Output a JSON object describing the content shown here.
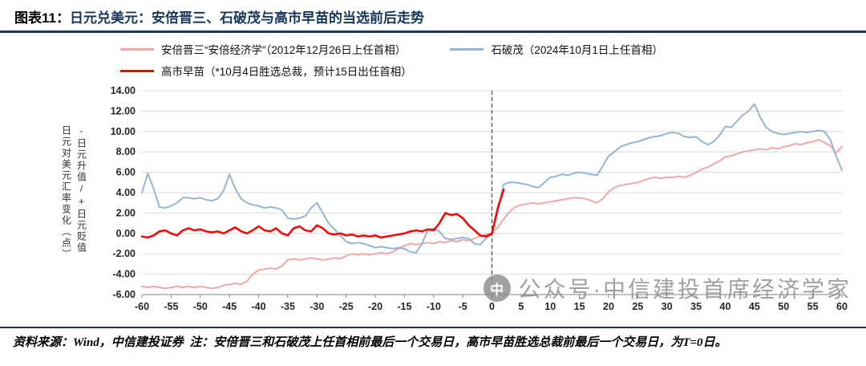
{
  "header": {
    "prefix": "图表11：",
    "title": "日元兑美元：安倍晋三、石破茂与高市早苗的当选前后走势"
  },
  "legend": [
    {
      "label": "安倍晋三“安倍经济学”（2012年12月26日上任首相）",
      "color": "#F3A6A6"
    },
    {
      "label": "石破茂（2024年10月1日上任首相）",
      "color": "#95B5D5"
    },
    {
      "label": "高市早苗（*10月4日胜选总裁，预计15日出任首相）",
      "color": "#FF0000"
    }
  ],
  "y_axis": {
    "line1": "日元对美元汇率变化（点）",
    "line2": "-日元升值/+日元贬值"
  },
  "watermark": {
    "logo_glyph": "中",
    "text": "公众号·中信建投首席经济学家"
  },
  "footer": {
    "text": "资料来源：Wind，中信建投证券  注：安倍晋三和石破茂上任首相前最后一个交易日，高市早苗胜选总裁前最后一个交易日，为T=0日。"
  },
  "chart_data": {
    "type": "line",
    "x_range": [
      -60,
      60
    ],
    "y_range": [
      -6,
      14
    ],
    "x_tick_step": 5,
    "y_tick_step": 2,
    "grid": "horizontal",
    "legend_position": "top",
    "vline_x": 0,
    "colors": {
      "gridline": "#D9D9D9",
      "axis": "#808080",
      "vline": "#17375D",
      "tick_text": "#262626"
    },
    "series": [
      {
        "name": "安倍晋三",
        "color": "#F3A6A6",
        "width": 2,
        "points": [
          [
            -60,
            -5.2
          ],
          [
            -59,
            -5.3
          ],
          [
            -58,
            -5.2
          ],
          [
            -57,
            -5.3
          ],
          [
            -56,
            -5.4
          ],
          [
            -55,
            -5.3
          ],
          [
            -54,
            -5.2
          ],
          [
            -53,
            -5.3
          ],
          [
            -52,
            -5.2
          ],
          [
            -51,
            -5.3
          ],
          [
            -50,
            -5.2
          ],
          [
            -49,
            -5.3
          ],
          [
            -48,
            -5.4
          ],
          [
            -47,
            -5.3
          ],
          [
            -46,
            -5.1
          ],
          [
            -45,
            -5.0
          ],
          [
            -44,
            -4.9
          ],
          [
            -43,
            -5.0
          ],
          [
            -42,
            -4.7
          ],
          [
            -41,
            -4.0
          ],
          [
            -40,
            -3.6
          ],
          [
            -39,
            -3.5
          ],
          [
            -38,
            -3.4
          ],
          [
            -37,
            -3.5
          ],
          [
            -36,
            -3.2
          ],
          [
            -35,
            -2.6
          ],
          [
            -34,
            -2.5
          ],
          [
            -33,
            -2.6
          ],
          [
            -32,
            -2.5
          ],
          [
            -31,
            -2.4
          ],
          [
            -30,
            -2.5
          ],
          [
            -29,
            -2.6
          ],
          [
            -28,
            -2.5
          ],
          [
            -27,
            -2.4
          ],
          [
            -26,
            -2.5
          ],
          [
            -25,
            -2.2
          ],
          [
            -24,
            -2.0
          ],
          [
            -23,
            -2.1
          ],
          [
            -22,
            -2.0
          ],
          [
            -21,
            -2.1
          ],
          [
            -20,
            -2.0
          ],
          [
            -19,
            -1.9
          ],
          [
            -18,
            -2.0
          ],
          [
            -17,
            -1.8
          ],
          [
            -16,
            -1.5
          ],
          [
            -15,
            -1.2
          ],
          [
            -14,
            -1.0
          ],
          [
            -13,
            -1.1
          ],
          [
            -12,
            -1.0
          ],
          [
            -11,
            -0.9
          ],
          [
            -10,
            -1.0
          ],
          [
            -9,
            -0.8
          ],
          [
            -8,
            -0.9
          ],
          [
            -7,
            -0.7
          ],
          [
            -6,
            -0.8
          ],
          [
            -5,
            -0.6
          ],
          [
            -4,
            -0.7
          ],
          [
            -3,
            -0.5
          ],
          [
            -2,
            -0.3
          ],
          [
            -1,
            -0.1
          ],
          [
            0,
            0.0
          ],
          [
            1,
            0.6
          ],
          [
            2,
            1.4
          ],
          [
            3,
            2.1
          ],
          [
            4,
            2.6
          ],
          [
            5,
            2.8
          ],
          [
            6,
            2.9
          ],
          [
            7,
            3.0
          ],
          [
            8,
            2.9
          ],
          [
            9,
            3.0
          ],
          [
            10,
            3.1
          ],
          [
            11,
            3.2
          ],
          [
            12,
            3.3
          ],
          [
            13,
            3.4
          ],
          [
            14,
            3.5
          ],
          [
            15,
            3.5
          ],
          [
            16,
            3.4
          ],
          [
            17,
            3.2
          ],
          [
            18,
            3.0
          ],
          [
            19,
            3.4
          ],
          [
            20,
            4.1
          ],
          [
            21,
            4.5
          ],
          [
            22,
            4.7
          ],
          [
            23,
            4.8
          ],
          [
            24,
            4.9
          ],
          [
            25,
            5.0
          ],
          [
            26,
            5.2
          ],
          [
            27,
            5.4
          ],
          [
            28,
            5.5
          ],
          [
            29,
            5.4
          ],
          [
            30,
            5.5
          ],
          [
            31,
            5.5
          ],
          [
            32,
            5.6
          ],
          [
            33,
            5.5
          ],
          [
            34,
            5.7
          ],
          [
            35,
            6.0
          ],
          [
            36,
            6.3
          ],
          [
            37,
            6.5
          ],
          [
            38,
            6.8
          ],
          [
            39,
            7.1
          ],
          [
            40,
            7.5
          ],
          [
            41,
            7.6
          ],
          [
            42,
            7.8
          ],
          [
            43,
            8.0
          ],
          [
            44,
            8.1
          ],
          [
            45,
            8.2
          ],
          [
            46,
            8.3
          ],
          [
            47,
            8.2
          ],
          [
            48,
            8.4
          ],
          [
            49,
            8.3
          ],
          [
            50,
            8.5
          ],
          [
            51,
            8.6
          ],
          [
            52,
            8.8
          ],
          [
            53,
            8.7
          ],
          [
            54,
            8.9
          ],
          [
            55,
            9.0
          ],
          [
            56,
            9.2
          ],
          [
            57,
            8.9
          ],
          [
            58,
            8.6
          ],
          [
            59,
            7.9
          ],
          [
            60,
            8.5
          ]
        ]
      },
      {
        "name": "石破茂",
        "color": "#95B5D5",
        "width": 2,
        "points": [
          [
            -60,
            4.0
          ],
          [
            -59,
            5.9
          ],
          [
            -58,
            4.4
          ],
          [
            -57,
            2.6
          ],
          [
            -56,
            2.5
          ],
          [
            -55,
            2.7
          ],
          [
            -54,
            3.0
          ],
          [
            -53,
            3.5
          ],
          [
            -52,
            3.5
          ],
          [
            -51,
            3.4
          ],
          [
            -50,
            3.5
          ],
          [
            -49,
            3.3
          ],
          [
            -48,
            3.2
          ],
          [
            -47,
            3.4
          ],
          [
            -46,
            4.2
          ],
          [
            -45,
            5.8
          ],
          [
            -44,
            4.4
          ],
          [
            -43,
            3.4
          ],
          [
            -42,
            3.0
          ],
          [
            -41,
            2.8
          ],
          [
            -40,
            2.7
          ],
          [
            -39,
            2.5
          ],
          [
            -38,
            2.6
          ],
          [
            -37,
            2.5
          ],
          [
            -36,
            2.3
          ],
          [
            -35,
            1.5
          ],
          [
            -34,
            1.4
          ],
          [
            -33,
            1.5
          ],
          [
            -32,
            1.7
          ],
          [
            -31,
            2.5
          ],
          [
            -30,
            3.0
          ],
          [
            -29,
            2.0
          ],
          [
            -28,
            1.0
          ],
          [
            -27,
            0.4
          ],
          [
            -26,
            -0.2
          ],
          [
            -25,
            -0.8
          ],
          [
            -24,
            -1.0
          ],
          [
            -23,
            -0.9
          ],
          [
            -22,
            -1.0
          ],
          [
            -21,
            -1.2
          ],
          [
            -20,
            -1.4
          ],
          [
            -19,
            -1.3
          ],
          [
            -18,
            -1.4
          ],
          [
            -17,
            -1.5
          ],
          [
            -16,
            -1.4
          ],
          [
            -15,
            -1.5
          ],
          [
            -14,
            -1.8
          ],
          [
            -13,
            -1.9
          ],
          [
            -12,
            -1.0
          ],
          [
            -11,
            0.3
          ],
          [
            -10,
            0.5
          ],
          [
            -9,
            0.2
          ],
          [
            -8,
            -0.5
          ],
          [
            -7,
            -0.6
          ],
          [
            -6,
            -0.5
          ],
          [
            -5,
            -0.4
          ],
          [
            -4,
            -0.5
          ],
          [
            -3,
            -1.0
          ],
          [
            -2,
            -1.1
          ],
          [
            -1,
            -0.5
          ],
          [
            0,
            0.0
          ],
          [
            1,
            2.2
          ],
          [
            2,
            4.8
          ],
          [
            3,
            5.0
          ],
          [
            4,
            5.0
          ],
          [
            5,
            4.9
          ],
          [
            6,
            4.8
          ],
          [
            7,
            4.6
          ],
          [
            8,
            4.5
          ],
          [
            9,
            5.0
          ],
          [
            10,
            5.5
          ],
          [
            11,
            5.6
          ],
          [
            12,
            5.8
          ],
          [
            13,
            5.7
          ],
          [
            14,
            5.9
          ],
          [
            15,
            6.0
          ],
          [
            16,
            5.9
          ],
          [
            17,
            5.8
          ],
          [
            18,
            5.7
          ],
          [
            19,
            6.6
          ],
          [
            20,
            7.6
          ],
          [
            21,
            8.0
          ],
          [
            22,
            8.5
          ],
          [
            23,
            8.7
          ],
          [
            24,
            8.9
          ],
          [
            25,
            9.0
          ],
          [
            26,
            9.2
          ],
          [
            27,
            9.4
          ],
          [
            28,
            9.5
          ],
          [
            29,
            9.6
          ],
          [
            30,
            9.8
          ],
          [
            31,
            9.9
          ],
          [
            32,
            9.8
          ],
          [
            33,
            9.5
          ],
          [
            34,
            9.4
          ],
          [
            35,
            9.5
          ],
          [
            36,
            9.0
          ],
          [
            37,
            8.7
          ],
          [
            38,
            9.0
          ],
          [
            39,
            9.6
          ],
          [
            40,
            10.5
          ],
          [
            41,
            10.4
          ],
          [
            42,
            11.0
          ],
          [
            43,
            11.6
          ],
          [
            44,
            12.0
          ],
          [
            45,
            12.7
          ],
          [
            46,
            11.4
          ],
          [
            47,
            10.4
          ],
          [
            48,
            10.0
          ],
          [
            49,
            9.8
          ],
          [
            50,
            9.7
          ],
          [
            51,
            9.8
          ],
          [
            52,
            9.9
          ],
          [
            53,
            10.0
          ],
          [
            54,
            9.9
          ],
          [
            55,
            10.0
          ],
          [
            56,
            10.1
          ],
          [
            57,
            10.0
          ],
          [
            58,
            9.2
          ],
          [
            59,
            7.6
          ],
          [
            60,
            6.2
          ]
        ]
      },
      {
        "name": "高市早苗",
        "color": "#FF0000",
        "width": 2.5,
        "points": [
          [
            -60,
            -0.3
          ],
          [
            -59,
            -0.4
          ],
          [
            -58,
            -0.2
          ],
          [
            -57,
            0.2
          ],
          [
            -56,
            0.3
          ],
          [
            -55,
            0.0
          ],
          [
            -54,
            -0.2
          ],
          [
            -53,
            0.3
          ],
          [
            -52,
            0.5
          ],
          [
            -51,
            0.3
          ],
          [
            -50,
            0.4
          ],
          [
            -49,
            0.2
          ],
          [
            -48,
            0.1
          ],
          [
            -47,
            0.2
          ],
          [
            -46,
            0.0
          ],
          [
            -45,
            0.3
          ],
          [
            -44,
            0.6
          ],
          [
            -43,
            0.2
          ],
          [
            -42,
            0.0
          ],
          [
            -41,
            0.3
          ],
          [
            -40,
            0.7
          ],
          [
            -39,
            0.3
          ],
          [
            -38,
            0.2
          ],
          [
            -37,
            0.5
          ],
          [
            -36,
            0.0
          ],
          [
            -35,
            -0.2
          ],
          [
            -34,
            0.5
          ],
          [
            -33,
            0.7
          ],
          [
            -32,
            0.3
          ],
          [
            -31,
            0.2
          ],
          [
            -30,
            0.8
          ],
          [
            -29,
            0.5
          ],
          [
            -28,
            0.0
          ],
          [
            -27,
            -0.1
          ],
          [
            -26,
            0.0
          ],
          [
            -25,
            -0.2
          ],
          [
            -24,
            -0.1
          ],
          [
            -23,
            -0.3
          ],
          [
            -22,
            -0.2
          ],
          [
            -21,
            -0.3
          ],
          [
            -20,
            -0.2
          ],
          [
            -19,
            -0.4
          ],
          [
            -18,
            -0.3
          ],
          [
            -17,
            -0.2
          ],
          [
            -16,
            -0.1
          ],
          [
            -15,
            0.0
          ],
          [
            -14,
            0.2
          ],
          [
            -13,
            0.3
          ],
          [
            -12,
            0.2
          ],
          [
            -11,
            0.4
          ],
          [
            -10,
            0.3
          ],
          [
            -9,
            1.0
          ],
          [
            -8,
            2.0
          ],
          [
            -7,
            1.8
          ],
          [
            -6,
            1.9
          ],
          [
            -5,
            1.5
          ],
          [
            -4,
            0.8
          ],
          [
            -3,
            0.3
          ],
          [
            -2,
            -0.2
          ],
          [
            -1,
            -0.3
          ],
          [
            0,
            0.0
          ],
          [
            1,
            2.5
          ],
          [
            2,
            4.3
          ]
        ]
      }
    ]
  }
}
